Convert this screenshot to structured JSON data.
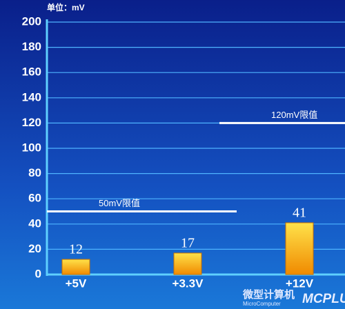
{
  "chart_data": {
    "type": "bar",
    "unit_label": "单位：mV",
    "categories": [
      "+5V",
      "+3.3V",
      "+12V"
    ],
    "values": [
      12,
      17,
      41
    ],
    "ylim": [
      0,
      200
    ],
    "yticks": [
      0,
      20,
      40,
      60,
      80,
      100,
      120,
      140,
      160,
      180,
      200
    ],
    "grid": true,
    "reference_lines": [
      {
        "value": 50,
        "label": "50mV限值"
      },
      {
        "value": 120,
        "label": "120mV限值"
      }
    ]
  },
  "watermark": {
    "name": "微型计算机",
    "sub": "MicroComputer",
    "logo": "MCPLUS"
  }
}
